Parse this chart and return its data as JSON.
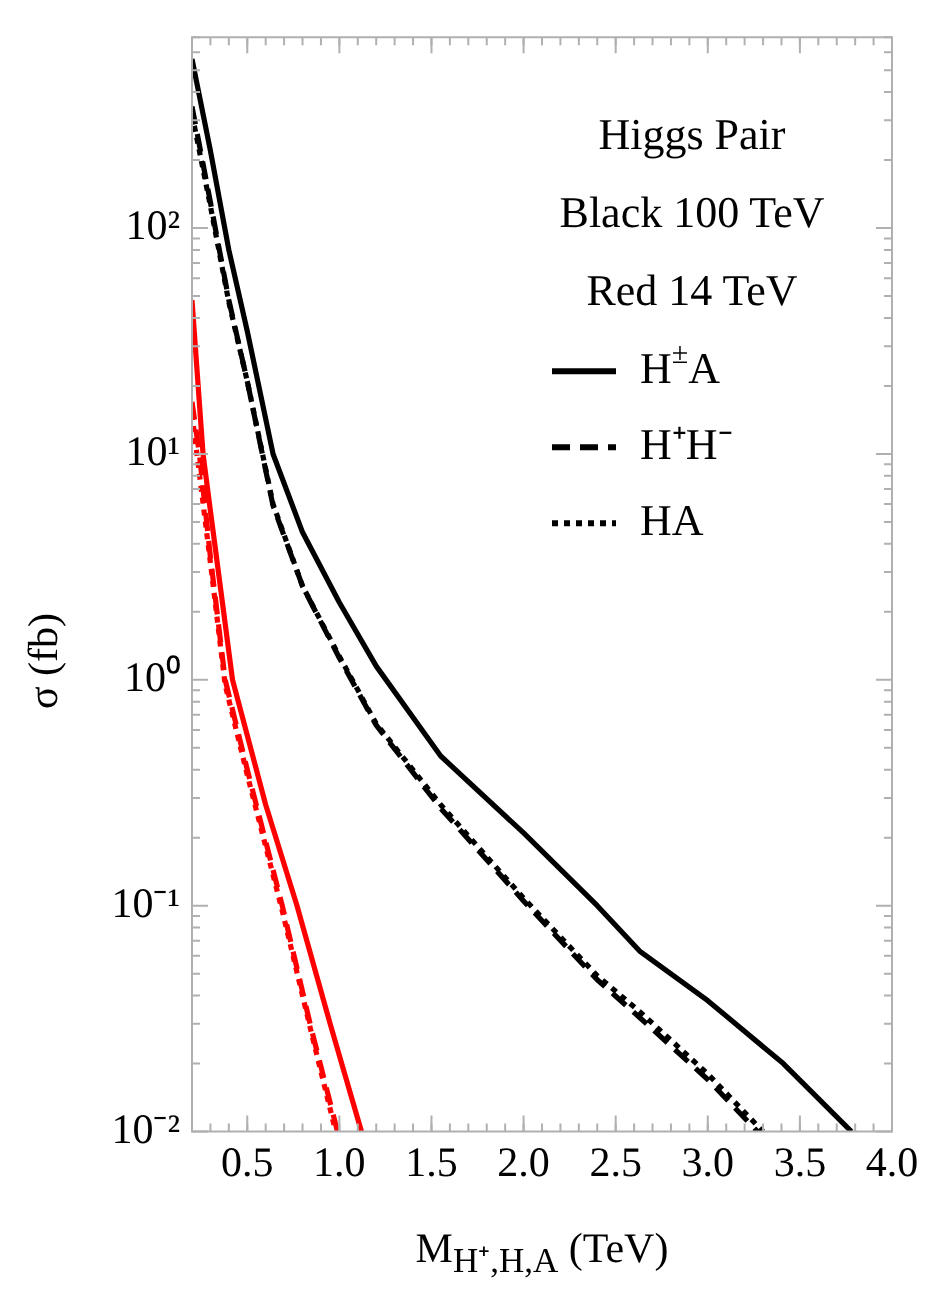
{
  "chart_data": {
    "type": "line",
    "xlabel": "M$_{H⁺,H,A}$ (TeV)",
    "ylabel": "σ (fb)",
    "legend_title": "Higgs Pair",
    "annotations": [
      "Black 100 TeV",
      "Red 14 TeV"
    ],
    "legend": "top right",
    "log": "y",
    "marker": "none",
    "xlim": [
      0.2,
      4.0
    ],
    "xticks": [
      0.5,
      {
        "value": 1,
        "label": "1.0"
      },
      1.5,
      {
        "value": 2,
        "label": "2.0"
      },
      2.5,
      {
        "value": 3,
        "label": "3.0"
      },
      3.5,
      {
        "value": 4,
        "label": "4.0"
      }
    ],
    "ylim": [
      0.01,
      700
    ],
    "yticks": [
      {
        "value": 0.01,
        "label": "10⁻²"
      },
      {
        "value": 0.1,
        "label": "10⁻¹"
      },
      {
        "value": 1,
        "label": "10⁰"
      },
      {
        "value": 10,
        "label": "10¹"
      },
      {
        "value": 100,
        "label": "10²"
      }
    ],
    "series": [
      {
        "name": "H$^{±}$A",
        "color": "#000000",
        "line_style": "solid",
        "x": [
          0.2,
          0.3,
          0.4,
          0.5,
          0.64,
          0.8,
          1.0,
          1.2,
          1.55,
          2.0,
          2.4,
          2.63,
          3.0,
          3.41,
          3.78
        ],
        "values": [
          560,
          220,
          80,
          35,
          10,
          4.5,
          2.2,
          1.15,
          0.46,
          0.21,
          0.1,
          0.063,
          0.038,
          0.02,
          0.01
        ]
      },
      {
        "name": "H⁺H⁻",
        "color": "#000000",
        "line_style": "dashed",
        "x": [
          0.2,
          0.3,
          0.4,
          0.5,
          0.64,
          0.8,
          1.0,
          1.2,
          1.55,
          2.0,
          2.4,
          2.63,
          3.0,
          3.27
        ],
        "values": [
          345,
          130,
          48,
          21,
          5.9,
          2.6,
          1.25,
          0.63,
          0.27,
          0.105,
          0.047,
          0.032,
          0.017,
          0.01
        ]
      },
      {
        "name": "HA",
        "color": "#000000",
        "line_style": "dotted",
        "x": [
          0.2,
          0.3,
          0.4,
          0.5,
          0.64,
          0.8,
          1.0,
          1.2,
          1.55,
          2.0,
          2.4,
          2.63,
          3.0,
          3.3
        ],
        "values": [
          320,
          125,
          47,
          21,
          6,
          2.6,
          1.27,
          0.64,
          0.28,
          0.108,
          0.049,
          0.034,
          0.018,
          0.01
        ]
      },
      {
        "color": "#ff0000",
        "line_style": "solid",
        "x": [
          0.2,
          0.26,
          0.3,
          0.42,
          0.6,
          0.77,
          0.95,
          1.12
        ],
        "values": [
          48,
          10,
          5.6,
          1,
          0.28,
          0.1,
          0.03,
          0.01
        ]
      },
      {
        "color": "#ff0000",
        "line_style": "dashed",
        "x": [
          0.2,
          0.24,
          0.3,
          0.38,
          0.5,
          0.69,
          0.85,
          0.99
        ],
        "values": [
          17,
          10,
          3.5,
          1,
          0.4,
          0.1,
          0.028,
          0.01
        ]
      },
      {
        "color": "#ff0000",
        "line_style": "dotted",
        "x": [
          0.2,
          0.3,
          0.38,
          0.5,
          0.69,
          0.85,
          0.98
        ],
        "values": [
          15,
          3.3,
          0.95,
          0.38,
          0.095,
          0.027,
          0.01
        ]
      }
    ]
  }
}
